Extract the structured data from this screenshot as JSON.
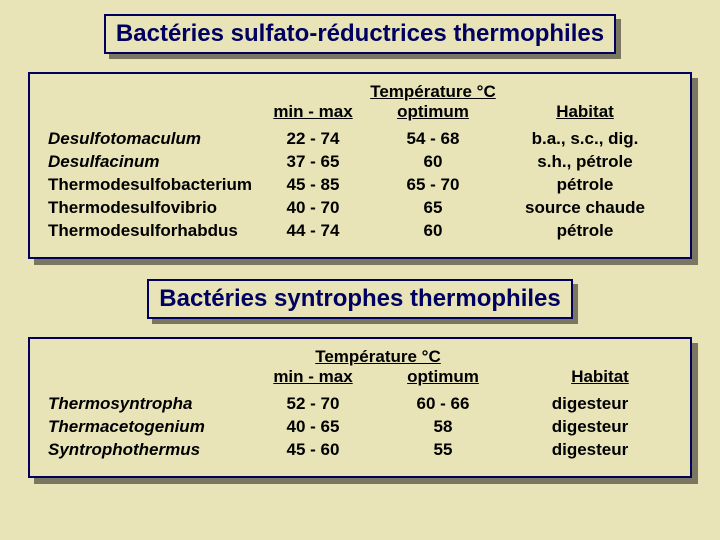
{
  "section1": {
    "title": "Bactéries sulfato-réductrices thermophiles",
    "header": {
      "temp_super": "Température °C",
      "minmax": "min - max",
      "optimum": "optimum",
      "habitat": "Habitat"
    },
    "rows": [
      {
        "name": "Desulfotomaculum",
        "italic": true,
        "minmax": "22 - 74",
        "opt": "54 - 68",
        "hab": "b.a., s.c., dig."
      },
      {
        "name": "Desulfacinum",
        "italic": true,
        "minmax": "37 - 65",
        "opt": "60",
        "hab": "s.h., pétrole"
      },
      {
        "name": "Thermodesulfobacterium",
        "italic": false,
        "minmax": "45 - 85",
        "opt": "65 - 70",
        "hab": "pétrole"
      },
      {
        "name": "Thermodesulfovibrio",
        "italic": false,
        "minmax": "40 - 70",
        "opt": "65",
        "hab": "source chaude"
      },
      {
        "name": "Thermodesulforhabdus",
        "italic": false,
        "minmax": "44 - 74",
        "opt": "60",
        "hab": "pétrole"
      }
    ]
  },
  "section2": {
    "title": "Bactéries syntrophes thermophiles",
    "header": {
      "temp_super": "Température °C",
      "minmax": "min - max",
      "optimum": "optimum",
      "habitat": "Habitat"
    },
    "rows": [
      {
        "name": "Thermosyntropha",
        "minmax": "52 - 70",
        "opt": "60 - 66",
        "hab": "digesteur"
      },
      {
        "name": "Thermacetogenium",
        "minmax": "40 - 65",
        "opt": "58",
        "hab": "digesteur"
      },
      {
        "name": "Syntrophothermus",
        "minmax": "45 - 60",
        "opt": "55",
        "hab": "digesteur"
      }
    ]
  },
  "style": {
    "bg": "#e8e4b8",
    "border": "#000060",
    "shadow": "#7a7660",
    "title_fontsize": 24,
    "body_fontsize": 17,
    "font": "Comic Sans MS"
  }
}
